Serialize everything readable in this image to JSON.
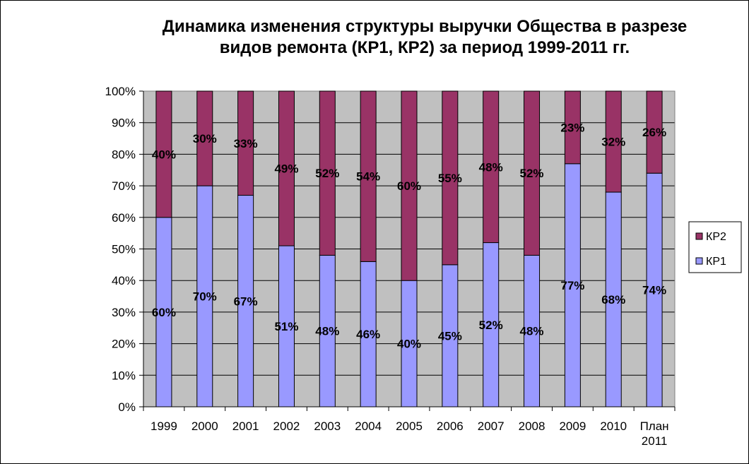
{
  "chart_data": {
    "type": "bar",
    "stacked": true,
    "percent_stacked": true,
    "title": "Динамика изменения структуры выручки Общества в разрезе\nвидов ремонта (КР1, КР2) за период 1999-2011 гг.",
    "xlabel": "",
    "ylabel": "",
    "ylim": [
      0,
      100
    ],
    "y_tick_labels": [
      "0%",
      "10%",
      "20%",
      "30%",
      "40%",
      "50%",
      "60%",
      "70%",
      "80%",
      "90%",
      "100%"
    ],
    "categories": [
      [
        "1999"
      ],
      [
        "2000"
      ],
      [
        "2001"
      ],
      [
        "2002"
      ],
      [
        "2003"
      ],
      [
        "2004"
      ],
      [
        "2005"
      ],
      [
        "2006"
      ],
      [
        "2007"
      ],
      [
        "2008"
      ],
      [
        "2009"
      ],
      [
        "2010"
      ],
      [
        "План",
        "2011"
      ]
    ],
    "series": [
      {
        "name": "КР1",
        "color": "#9999ff",
        "values": [
          60,
          70,
          67,
          51,
          48,
          46,
          40,
          45,
          52,
          48,
          77,
          68,
          74
        ],
        "labels": [
          "60%",
          "70%",
          "67%",
          "51%",
          "48%",
          "46%",
          "40%",
          "45%",
          "52%",
          "48%",
          "77%",
          "68%",
          "74%"
        ]
      },
      {
        "name": "КР2",
        "color": "#993366",
        "values": [
          40,
          30,
          33,
          49,
          52,
          54,
          60,
          55,
          48,
          52,
          23,
          32,
          26
        ],
        "labels": [
          "40%",
          "30%",
          "33%",
          "49%",
          "52%",
          "54%",
          "60%",
          "55%",
          "48%",
          "52%",
          "23%",
          "32%",
          "26%"
        ]
      }
    ],
    "plot_background": "#c0c0c0",
    "grid": true,
    "legend": {
      "placement": "right",
      "entries": [
        "КР2",
        "КР1"
      ]
    }
  }
}
